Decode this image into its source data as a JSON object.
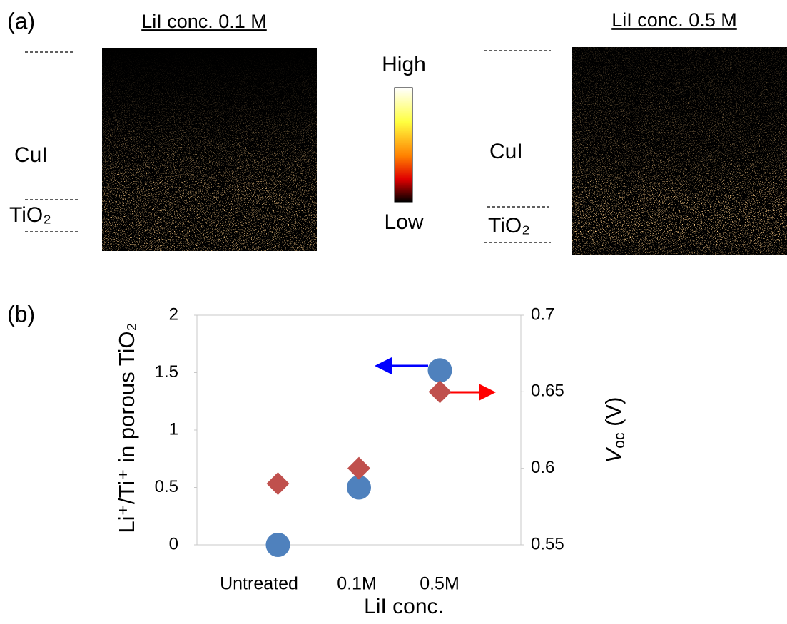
{
  "panel_a": {
    "label": "(a)",
    "left_title": "LiI  conc. 0.1 M",
    "right_title": "LiI conc. 0.5 M",
    "left_layers": [
      "CuI",
      "TiO₂"
    ],
    "right_layers": [
      "CuI",
      "TiO₂"
    ],
    "colorbar": {
      "high": "High",
      "low": "Low"
    }
  },
  "panel_b": {
    "label": "(b)"
  },
  "chart_data": {
    "type": "scatter",
    "categories": [
      "Untreated",
      "0.1M",
      "0.5M"
    ],
    "xlabel": "LiI conc.",
    "ylabel": "Li⁺/Ti⁺ in porous TiO₂",
    "y2label": [
      "V",
      "oc",
      " (V)"
    ],
    "series": [
      {
        "color": "#4f81bd",
        "marker": "circle",
        "values": [
          0,
          0.5,
          1.52
        ]
      },
      {
        "color": "#c0504d",
        "marker": "diamond",
        "axis": "y2",
        "values": [
          0.59,
          0.6,
          0.65
        ]
      }
    ],
    "ylim": [
      0,
      2
    ],
    "yticks": [
      0,
      0.5,
      1,
      1.5,
      2
    ],
    "y2lim": [
      0.55,
      0.7
    ],
    "y2ticks": [
      0.55,
      0.6,
      0.65,
      0.7
    ],
    "grid": false
  }
}
